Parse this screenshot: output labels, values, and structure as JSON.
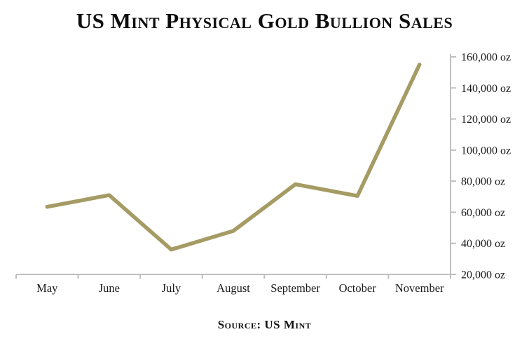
{
  "page": {
    "title": "US Mint Physical Gold Bullion Sales",
    "source": "Source: US Mint"
  },
  "chart_data": {
    "type": "line",
    "title": "US Mint Physical Gold Bullion Sales",
    "source": "Source: US Mint",
    "categories": [
      "May",
      "June",
      "July",
      "August",
      "September",
      "October",
      "November"
    ],
    "series": [
      {
        "name": "US Mint physical gold bullion sales",
        "values": [
          63500,
          71000,
          36000,
          48000,
          78000,
          70500,
          155000
        ]
      }
    ],
    "unit": "oz",
    "xlabel": "",
    "ylabel": "",
    "ylim": [
      20000,
      160000
    ],
    "ytick_step": 20000,
    "ytick_suffix": " oz",
    "yaxis_position": "right",
    "grid": false,
    "legend": "none",
    "colors": {
      "line": "#A59B64",
      "axis": "#BFBFBF",
      "text": "#1A1A1A",
      "title": "#0D0D0D",
      "background": "#FFFFFF"
    }
  }
}
